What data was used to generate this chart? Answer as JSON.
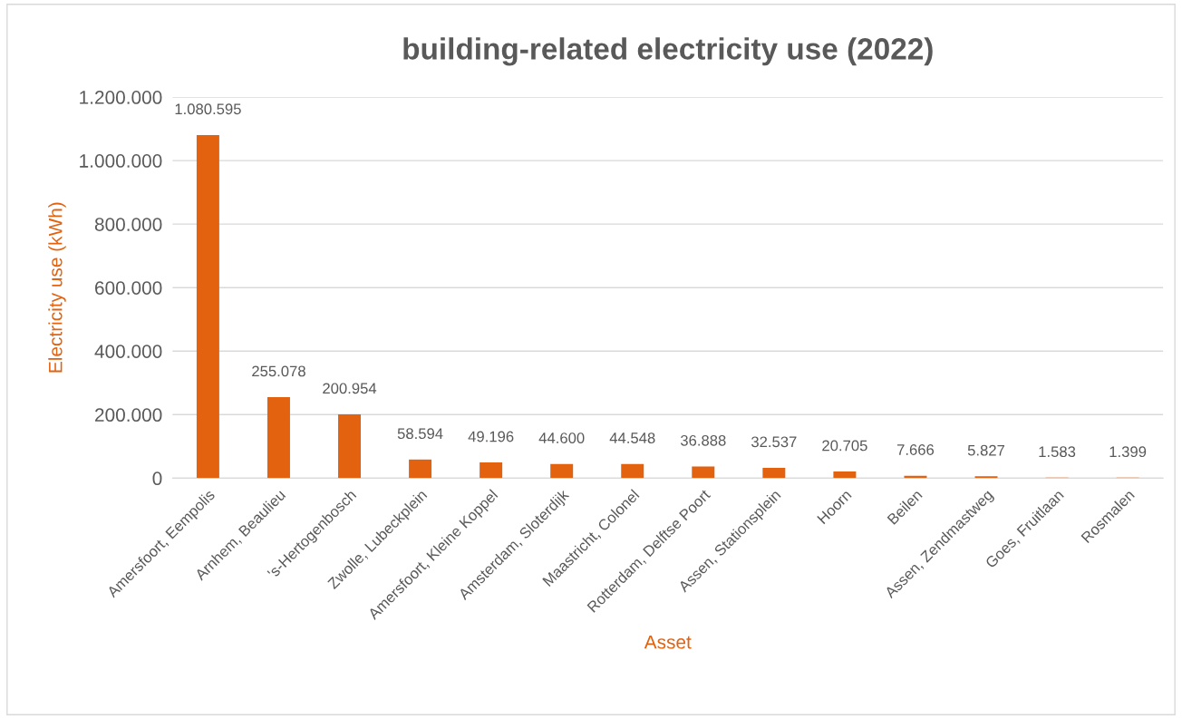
{
  "chart_data": {
    "type": "bar",
    "title": "building-related electricity use (2022)",
    "xlabel": "Asset",
    "ylabel": "Electricity use (kWh)",
    "categories": [
      "Amersfoort, Eempolis",
      "Arnhem, Beaulieu",
      "'s-Hertogenbosch",
      "Zwolle, Lubeckplein",
      "Amersfoort, Kleine Koppel",
      "Amsterdam, Sloterdijk",
      "Maastricht, Colonel",
      "Rotterdam, Delftse Poort",
      "Assen, Stationsplein",
      "Hoorn",
      "Beilen",
      "Assen, Zendmastweg",
      "Goes, Fruitlaan",
      "Rosmalen"
    ],
    "values": [
      1080595,
      255078,
      200954,
      58594,
      49196,
      44600,
      44548,
      36888,
      32537,
      20705,
      7666,
      5827,
      1583,
      1399
    ],
    "value_labels": [
      "1.080.595",
      "255.078",
      "200.954",
      "58.594",
      "49.196",
      "44.600",
      "44.548",
      "36.888",
      "32.537",
      "20.705",
      "7.666",
      "5.827",
      "1.583",
      "1.399"
    ],
    "color": "#e26210",
    "ylim": [
      0,
      1200000
    ],
    "yticks": [
      0,
      {
        "value": 200000,
        "label": "200.000"
      },
      {
        "value": 400000,
        "label": "400.000"
      },
      {
        "value": 600000,
        "label": "600.000"
      },
      {
        "value": 800000,
        "label": "800.000"
      },
      {
        "value": 1000000,
        "label": "1.000.000"
      },
      {
        "value": 1200000,
        "label": "1.200.000"
      }
    ],
    "grid": "y",
    "legend": false
  }
}
